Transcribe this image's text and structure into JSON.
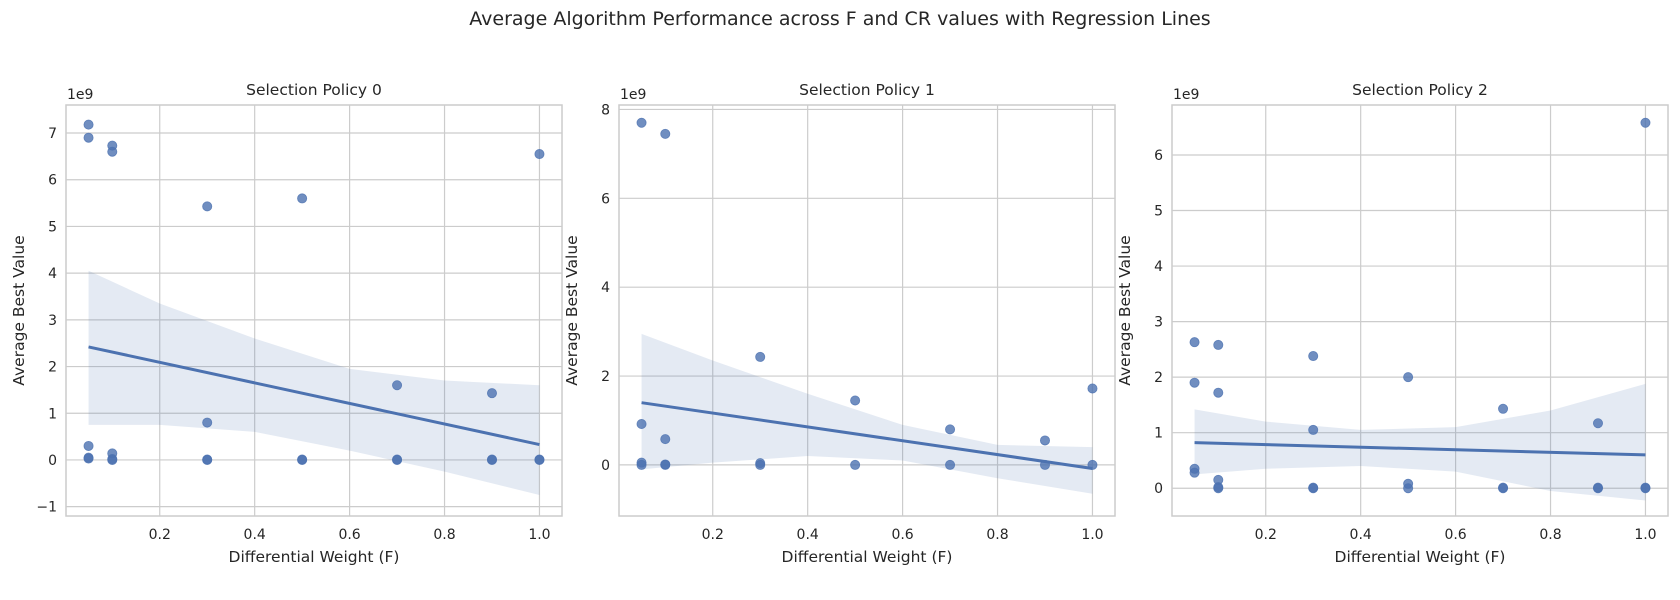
{
  "suptitle": "Average Algorithm Performance across F and CR values with Regression Lines",
  "colors": {
    "point": "#4C72B0",
    "line": "#4C72B0",
    "band": "#4C72B0",
    "grid": "#cccccc",
    "axes": "#cccccc",
    "text": "#262626"
  },
  "chart_data": [
    {
      "type": "scatter",
      "title": "Selection Policy 0",
      "xlabel": "Differential Weight (F)",
      "ylabel": "Average Best Value",
      "offset_label": "1e9",
      "xlim": [
        0.0025,
        1.0475
      ],
      "ylim": [
        -1.2,
        7.6
      ],
      "xticks": [
        0.2,
        0.4,
        0.6,
        0.8,
        1.0
      ],
      "xtick_labels": [
        "0.2",
        "0.4",
        "0.6",
        "0.8",
        "1.0"
      ],
      "yticks": [
        -1,
        0,
        1,
        2,
        3,
        4,
        5,
        6,
        7
      ],
      "ytick_labels": [
        "−1",
        "0",
        "1",
        "2",
        "3",
        "4",
        "5",
        "6",
        "7"
      ],
      "grid": true,
      "points": [
        {
          "x": 0.05,
          "y": 7.18
        },
        {
          "x": 0.05,
          "y": 6.9
        },
        {
          "x": 0.05,
          "y": 0.3
        },
        {
          "x": 0.05,
          "y": 0.05
        },
        {
          "x": 0.05,
          "y": 0.03
        },
        {
          "x": 0.1,
          "y": 6.73
        },
        {
          "x": 0.1,
          "y": 6.6
        },
        {
          "x": 0.1,
          "y": 0.14
        },
        {
          "x": 0.1,
          "y": 0.02
        },
        {
          "x": 0.1,
          "y": 0.0
        },
        {
          "x": 0.3,
          "y": 5.43
        },
        {
          "x": 0.3,
          "y": 0.8
        },
        {
          "x": 0.3,
          "y": 0.01
        },
        {
          "x": 0.3,
          "y": 0.0
        },
        {
          "x": 0.5,
          "y": 5.6
        },
        {
          "x": 0.5,
          "y": 0.01
        },
        {
          "x": 0.5,
          "y": 0.0
        },
        {
          "x": 0.7,
          "y": 1.6
        },
        {
          "x": 0.7,
          "y": 0.01
        },
        {
          "x": 0.7,
          "y": 0.0
        },
        {
          "x": 0.9,
          "y": 1.43
        },
        {
          "x": 0.9,
          "y": 0.01
        },
        {
          "x": 0.9,
          "y": 0.0
        },
        {
          "x": 1.0,
          "y": 6.55
        },
        {
          "x": 1.0,
          "y": 0.01
        },
        {
          "x": 1.0,
          "y": 0.0
        }
      ],
      "regression": {
        "x": [
          0.05,
          1.0
        ],
        "y": [
          2.42,
          0.33
        ]
      },
      "ci_band": {
        "x": [
          0.05,
          0.2,
          0.4,
          0.6,
          0.8,
          1.0
        ],
        "upper": [
          4.05,
          3.35,
          2.6,
          1.95,
          1.7,
          1.6
        ],
        "lower": [
          0.75,
          0.75,
          0.6,
          0.2,
          -0.25,
          -0.75
        ]
      }
    },
    {
      "type": "scatter",
      "title": "Selection Policy 1",
      "xlabel": "Differential Weight (F)",
      "ylabel": "Average Best Value",
      "offset_label": "1e9",
      "xlim": [
        0.0025,
        1.0475
      ],
      "ylim": [
        -1.15,
        8.1
      ],
      "xticks": [
        0.2,
        0.4,
        0.6,
        0.8,
        1.0
      ],
      "xtick_labels": [
        "0.2",
        "0.4",
        "0.6",
        "0.8",
        "1.0"
      ],
      "yticks": [
        0,
        2,
        4,
        6,
        8
      ],
      "ytick_labels": [
        "0",
        "2",
        "4",
        "6",
        "8"
      ],
      "grid": true,
      "points": [
        {
          "x": 0.05,
          "y": 7.7
        },
        {
          "x": 0.05,
          "y": 0.92
        },
        {
          "x": 0.05,
          "y": 0.05
        },
        {
          "x": 0.05,
          "y": 0.0
        },
        {
          "x": 0.1,
          "y": 7.45
        },
        {
          "x": 0.1,
          "y": 0.58
        },
        {
          "x": 0.1,
          "y": 0.01
        },
        {
          "x": 0.1,
          "y": 0.0
        },
        {
          "x": 0.3,
          "y": 2.43
        },
        {
          "x": 0.3,
          "y": 0.04
        },
        {
          "x": 0.3,
          "y": 0.0
        },
        {
          "x": 0.5,
          "y": 1.45
        },
        {
          "x": 0.5,
          "y": 0.0
        },
        {
          "x": 0.7,
          "y": 0.8
        },
        {
          "x": 0.7,
          "y": 0.0
        },
        {
          "x": 0.9,
          "y": 0.55
        },
        {
          "x": 0.9,
          "y": 0.0
        },
        {
          "x": 1.0,
          "y": 1.72
        },
        {
          "x": 1.0,
          "y": 0.0
        }
      ],
      "regression": {
        "x": [
          0.05,
          1.0
        ],
        "y": [
          1.4,
          -0.08
        ]
      },
      "ci_band": {
        "x": [
          0.05,
          0.2,
          0.4,
          0.6,
          0.8,
          1.0
        ],
        "upper": [
          2.95,
          2.35,
          1.6,
          0.9,
          0.45,
          0.4
        ],
        "lower": [
          -0.1,
          0.05,
          0.2,
          0.1,
          -0.3,
          -0.65
        ]
      }
    },
    {
      "type": "scatter",
      "title": "Selection Policy 2",
      "xlabel": "Differential Weight (F)",
      "ylabel": "Average Best Value",
      "offset_label": "1e9",
      "xlim": [
        0.0025,
        1.0475
      ],
      "ylim": [
        -0.5,
        6.9
      ],
      "xticks": [
        0.2,
        0.4,
        0.6,
        0.8,
        1.0
      ],
      "xtick_labels": [
        "0.2",
        "0.4",
        "0.6",
        "0.8",
        "1.0"
      ],
      "yticks": [
        0,
        1,
        2,
        3,
        4,
        5,
        6
      ],
      "ytick_labels": [
        "0",
        "1",
        "2",
        "3",
        "4",
        "5",
        "6"
      ],
      "grid": true,
      "points": [
        {
          "x": 0.05,
          "y": 2.63
        },
        {
          "x": 0.05,
          "y": 1.9
        },
        {
          "x": 0.05,
          "y": 0.35
        },
        {
          "x": 0.05,
          "y": 0.28
        },
        {
          "x": 0.1,
          "y": 2.58
        },
        {
          "x": 0.1,
          "y": 1.72
        },
        {
          "x": 0.1,
          "y": 0.15
        },
        {
          "x": 0.1,
          "y": 0.02
        },
        {
          "x": 0.1,
          "y": 0.0
        },
        {
          "x": 0.3,
          "y": 2.38
        },
        {
          "x": 0.3,
          "y": 1.05
        },
        {
          "x": 0.3,
          "y": 0.01
        },
        {
          "x": 0.3,
          "y": 0.0
        },
        {
          "x": 0.5,
          "y": 2.0
        },
        {
          "x": 0.5,
          "y": 0.08
        },
        {
          "x": 0.5,
          "y": 0.0
        },
        {
          "x": 0.7,
          "y": 1.43
        },
        {
          "x": 0.7,
          "y": 0.01
        },
        {
          "x": 0.7,
          "y": 0.0
        },
        {
          "x": 0.9,
          "y": 1.17
        },
        {
          "x": 0.9,
          "y": 0.01
        },
        {
          "x": 0.9,
          "y": 0.0
        },
        {
          "x": 1.0,
          "y": 6.58
        },
        {
          "x": 1.0,
          "y": 0.01
        },
        {
          "x": 1.0,
          "y": 0.0
        }
      ],
      "regression": {
        "x": [
          0.05,
          1.0
        ],
        "y": [
          0.82,
          0.6
        ]
      },
      "ci_band": {
        "x": [
          0.05,
          0.2,
          0.4,
          0.6,
          0.8,
          1.0
        ],
        "upper": [
          1.42,
          1.2,
          1.05,
          1.1,
          1.4,
          1.88
        ],
        "lower": [
          0.25,
          0.35,
          0.4,
          0.3,
          -0.05,
          -0.22
        ]
      }
    }
  ]
}
